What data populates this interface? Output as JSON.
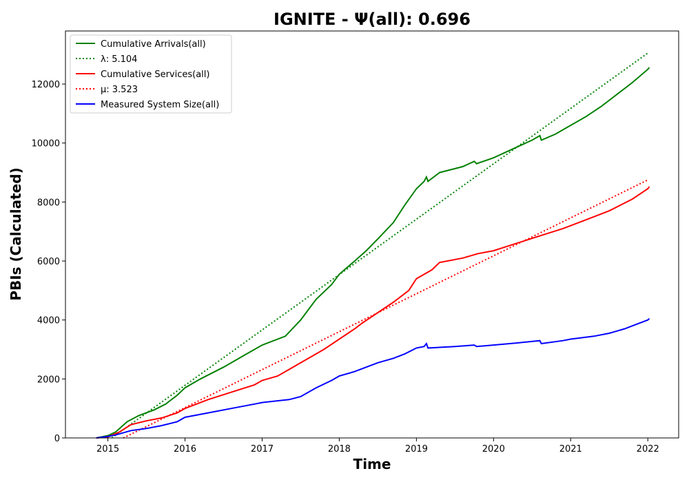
{
  "chart_data": {
    "type": "line",
    "title": "IGNITE -  Ψ(all): 0.696",
    "xlabel": "Time",
    "ylabel": "PBIs (Calculated)",
    "xlim": [
      2014.45,
      2022.4
    ],
    "ylim": [
      0,
      13800
    ],
    "xticks": [
      2015,
      2016,
      2017,
      2018,
      2019,
      2020,
      2021,
      2022
    ],
    "yticks": [
      0,
      2000,
      4000,
      6000,
      8000,
      10000,
      12000
    ],
    "grid": false,
    "legend_position": "top-left",
    "series": [
      {
        "name": "Cumulative Arrivals(all)",
        "color": "#008000",
        "style": "solid",
        "points": [
          [
            2014.85,
            0
          ],
          [
            2015.0,
            80
          ],
          [
            2015.1,
            200
          ],
          [
            2015.25,
            550
          ],
          [
            2015.4,
            760
          ],
          [
            2015.6,
            950
          ],
          [
            2015.75,
            1150
          ],
          [
            2015.9,
            1450
          ],
          [
            2016.0,
            1700
          ],
          [
            2016.2,
            2000
          ],
          [
            2016.5,
            2400
          ],
          [
            2016.8,
            2850
          ],
          [
            2017.0,
            3150
          ],
          [
            2017.3,
            3450
          ],
          [
            2017.5,
            4000
          ],
          [
            2017.7,
            4700
          ],
          [
            2017.9,
            5200
          ],
          [
            2018.0,
            5550
          ],
          [
            2018.2,
            6000
          ],
          [
            2018.35,
            6350
          ],
          [
            2018.5,
            6750
          ],
          [
            2018.7,
            7300
          ],
          [
            2018.85,
            7900
          ],
          [
            2019.0,
            8450
          ],
          [
            2019.1,
            8700
          ],
          [
            2019.13,
            8850
          ],
          [
            2019.15,
            8700
          ],
          [
            2019.3,
            9000
          ],
          [
            2019.6,
            9200
          ],
          [
            2019.75,
            9380
          ],
          [
            2019.78,
            9300
          ],
          [
            2020.0,
            9500
          ],
          [
            2020.25,
            9800
          ],
          [
            2020.5,
            10100
          ],
          [
            2020.6,
            10250
          ],
          [
            2020.62,
            10100
          ],
          [
            2020.8,
            10300
          ],
          [
            2021.0,
            10600
          ],
          [
            2021.2,
            10900
          ],
          [
            2021.4,
            11250
          ],
          [
            2021.6,
            11650
          ],
          [
            2021.8,
            12050
          ],
          [
            2022.0,
            12500
          ],
          [
            2022.02,
            12560
          ]
        ]
      },
      {
        "name": "λ: 5.104",
        "color": "#008000",
        "style": "dotted",
        "points": [
          [
            2015.05,
            0
          ],
          [
            2022.0,
            13050
          ]
        ]
      },
      {
        "name": "Cumulative Services(all)",
        "color": "#ff0000",
        "style": "solid",
        "points": [
          [
            2014.85,
            0
          ],
          [
            2015.0,
            30
          ],
          [
            2015.15,
            200
          ],
          [
            2015.3,
            450
          ],
          [
            2015.5,
            580
          ],
          [
            2015.7,
            680
          ],
          [
            2015.9,
            850
          ],
          [
            2016.0,
            1000
          ],
          [
            2016.3,
            1300
          ],
          [
            2016.6,
            1550
          ],
          [
            2016.9,
            1800
          ],
          [
            2017.0,
            1950
          ],
          [
            2017.2,
            2100
          ],
          [
            2017.4,
            2400
          ],
          [
            2017.6,
            2700
          ],
          [
            2017.8,
            3000
          ],
          [
            2018.0,
            3350
          ],
          [
            2018.2,
            3700
          ],
          [
            2018.3,
            3900
          ],
          [
            2018.5,
            4250
          ],
          [
            2018.7,
            4600
          ],
          [
            2018.9,
            5000
          ],
          [
            2019.0,
            5400
          ],
          [
            2019.2,
            5700
          ],
          [
            2019.3,
            5950
          ],
          [
            2019.6,
            6100
          ],
          [
            2019.8,
            6250
          ],
          [
            2020.0,
            6350
          ],
          [
            2020.3,
            6600
          ],
          [
            2020.6,
            6850
          ],
          [
            2020.9,
            7100
          ],
          [
            2021.0,
            7200
          ],
          [
            2021.3,
            7500
          ],
          [
            2021.5,
            7700
          ],
          [
            2021.8,
            8100
          ],
          [
            2022.0,
            8450
          ],
          [
            2022.02,
            8520
          ]
        ]
      },
      {
        "name": "μ: 3.523",
        "color": "#ff0000",
        "style": "dotted",
        "points": [
          [
            2015.2,
            0
          ],
          [
            2022.0,
            8750
          ]
        ]
      },
      {
        "name": "Measured System Size(all)",
        "color": "#0000ff",
        "style": "solid",
        "points": [
          [
            2014.85,
            0
          ],
          [
            2015.0,
            50
          ],
          [
            2015.1,
            100
          ],
          [
            2015.3,
            250
          ],
          [
            2015.5,
            320
          ],
          [
            2015.7,
            420
          ],
          [
            2015.9,
            550
          ],
          [
            2016.0,
            700
          ],
          [
            2016.3,
            850
          ],
          [
            2016.6,
            1000
          ],
          [
            2016.9,
            1150
          ],
          [
            2017.0,
            1200
          ],
          [
            2017.35,
            1300
          ],
          [
            2017.5,
            1400
          ],
          [
            2017.7,
            1700
          ],
          [
            2017.9,
            1950
          ],
          [
            2018.0,
            2100
          ],
          [
            2018.2,
            2250
          ],
          [
            2018.35,
            2400
          ],
          [
            2018.5,
            2550
          ],
          [
            2018.7,
            2700
          ],
          [
            2018.85,
            2850
          ],
          [
            2019.0,
            3050
          ],
          [
            2019.1,
            3100
          ],
          [
            2019.13,
            3200
          ],
          [
            2019.15,
            3050
          ],
          [
            2019.5,
            3100
          ],
          [
            2019.75,
            3150
          ],
          [
            2019.78,
            3100
          ],
          [
            2020.0,
            3150
          ],
          [
            2020.3,
            3220
          ],
          [
            2020.6,
            3300
          ],
          [
            2020.62,
            3200
          ],
          [
            2020.9,
            3300
          ],
          [
            2021.0,
            3350
          ],
          [
            2021.3,
            3450
          ],
          [
            2021.5,
            3550
          ],
          [
            2021.7,
            3700
          ],
          [
            2021.85,
            3850
          ],
          [
            2022.0,
            4000
          ],
          [
            2022.02,
            4050
          ]
        ]
      }
    ]
  }
}
